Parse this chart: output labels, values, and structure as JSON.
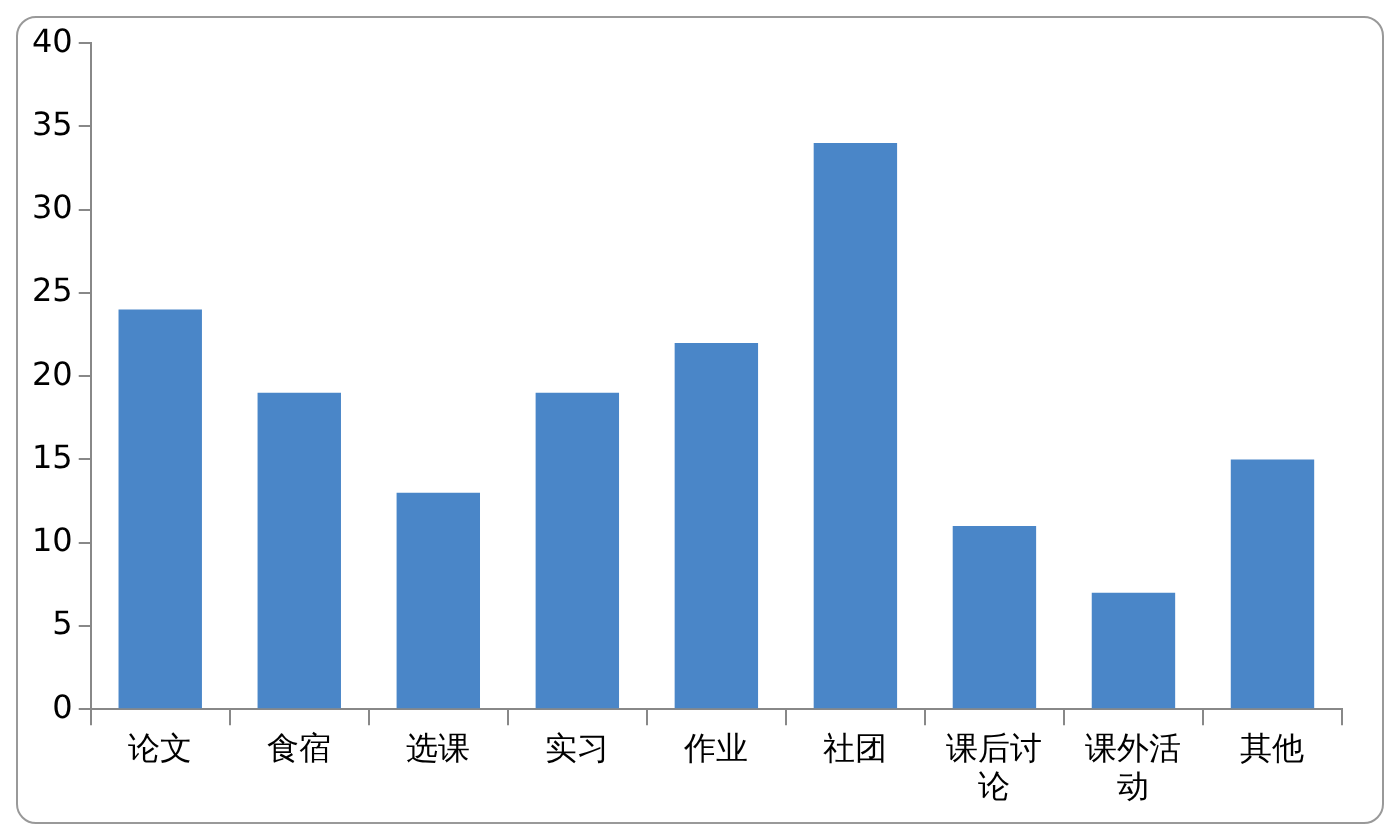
{
  "chart_data": {
    "type": "bar",
    "categories": [
      "论文",
      "食宿",
      "选课",
      "实习",
      "作业",
      "社团",
      "课后讨论",
      "课外活动",
      "其他"
    ],
    "values": [
      24,
      19,
      13,
      19,
      22,
      34,
      11,
      7,
      15
    ],
    "color": "#4a86c8",
    "ylim": [
      0,
      40
    ],
    "yticks": [
      0,
      5,
      10,
      15,
      20,
      25,
      30,
      35,
      40
    ],
    "grid": false,
    "legend": false
  }
}
